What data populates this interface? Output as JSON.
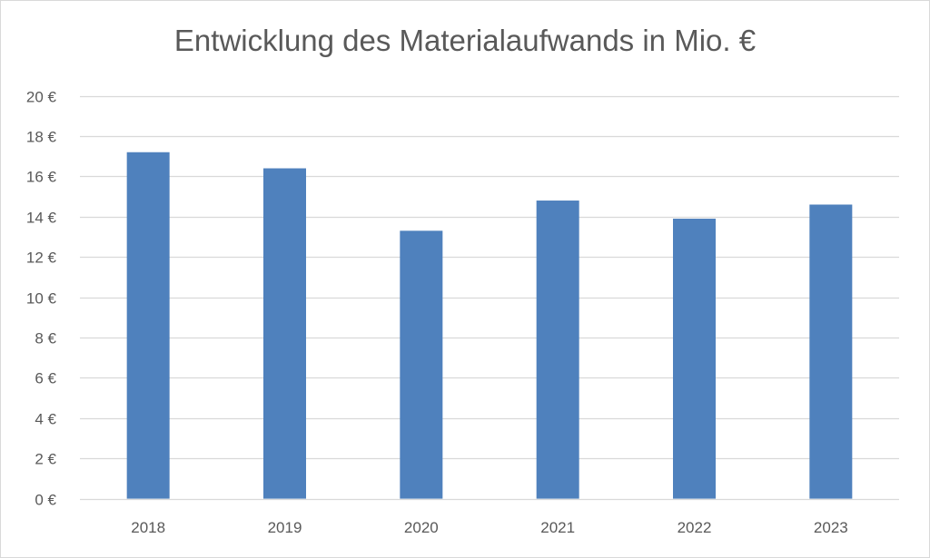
{
  "chart_data": {
    "type": "bar",
    "title": "Entwicklung des Materialaufwands in Mio. €",
    "xlabel": "",
    "ylabel": "",
    "categories": [
      "2018",
      "2019",
      "2020",
      "2021",
      "2022",
      "2023"
    ],
    "values": [
      17.2,
      16.4,
      13.3,
      14.8,
      13.9,
      14.6
    ],
    "ylim": [
      0,
      20
    ],
    "yticks": [
      0,
      2,
      4,
      6,
      8,
      10,
      12,
      14,
      16,
      18,
      20
    ],
    "ytick_labels": [
      "0 €",
      "2 €",
      "4 €",
      "6 €",
      "8 €",
      "10 €",
      "12 €",
      "14 €",
      "16 €",
      "18 €",
      "20 €"
    ],
    "grid": true,
    "legend": "none",
    "bar_color": "#4f81bd",
    "grid_color": "#d9d9d9"
  }
}
